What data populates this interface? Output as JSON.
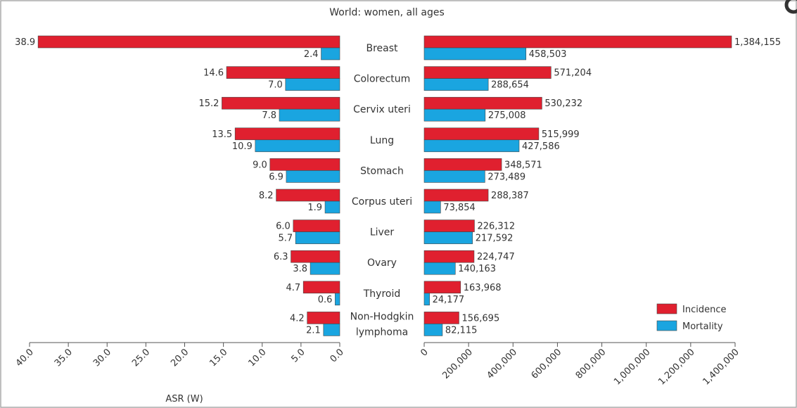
{
  "chart_data": {
    "type": "bar",
    "title": "World: women, all ages",
    "categories": [
      "Breast",
      "Colorectum",
      "Cervix uteri",
      "Lung",
      "Stomach",
      "Corpus uteri",
      "Liver",
      "Ovary",
      "Thyroid",
      "Non-Hodgkin lymphoma"
    ],
    "category_lines": [
      [
        "Breast"
      ],
      [
        "Colorectum"
      ],
      [
        "Cervix uteri"
      ],
      [
        "Lung"
      ],
      [
        "Stomach"
      ],
      [
        "Corpus uteri"
      ],
      [
        "Liver"
      ],
      [
        "Ovary"
      ],
      [
        "Thyroid"
      ],
      [
        "Non-Hodgkin",
        "lymphoma"
      ]
    ],
    "left_panel": {
      "xlabel": "ASR (W)",
      "xlim": [
        0,
        40
      ],
      "ticks": [
        "40.0",
        "35.0",
        "30.0",
        "25.0",
        "20.0",
        "15.0",
        "10.0",
        "5.0",
        "0.0"
      ],
      "series": [
        {
          "name": "Incidence",
          "values": [
            38.9,
            14.6,
            15.2,
            13.5,
            9.0,
            8.2,
            6.0,
            6.3,
            4.7,
            4.2
          ],
          "labels": [
            "38.9",
            "14.6",
            "15.2",
            "13.5",
            "9.0",
            "8.2",
            "6.0",
            "6.3",
            "4.7",
            "4.2"
          ]
        },
        {
          "name": "Mortality",
          "values": [
            2.4,
            7.0,
            7.8,
            10.9,
            6.9,
            1.9,
            5.7,
            3.8,
            0.6,
            2.1
          ],
          "labels": [
            "2.4",
            "7.0",
            "7.8",
            "10.9",
            "6.9",
            "1.9",
            "5.7",
            "3.8",
            "0.6",
            "2.1"
          ]
        }
      ]
    },
    "right_panel": {
      "xlabel": "",
      "xlim": [
        0,
        1400000
      ],
      "ticks": [
        "0",
        "200,000",
        "400,000",
        "600,000",
        "800,000",
        "1,000,000",
        "1,200,000",
        "1,400,000"
      ],
      "series": [
        {
          "name": "Incidence",
          "values": [
            1384155,
            571204,
            530232,
            515999,
            348571,
            288387,
            226312,
            224747,
            163968,
            156695
          ],
          "labels": [
            "1,384,155",
            "571,204",
            "530,232",
            "515,999",
            "348,571",
            "288,387",
            "226,312",
            "224,747",
            "163,968",
            "156,695"
          ]
        },
        {
          "name": "Mortality",
          "values": [
            458503,
            288654,
            275008,
            427586,
            273489,
            73854,
            217592,
            140163,
            24177,
            82115
          ],
          "labels": [
            "458,503",
            "288,654",
            "275,008",
            "427,586",
            "273,489",
            "73,854",
            "217,592",
            "140,163",
            "24,177",
            "82,115"
          ]
        }
      ]
    },
    "legend": {
      "position": "bottom-right",
      "items": [
        {
          "name": "Incidence",
          "color": "#e0202f"
        },
        {
          "name": "Mortality",
          "color": "#1aa5e0"
        }
      ]
    },
    "colors": {
      "incidence": "#e0202f",
      "mortality": "#1aa5e0"
    }
  }
}
